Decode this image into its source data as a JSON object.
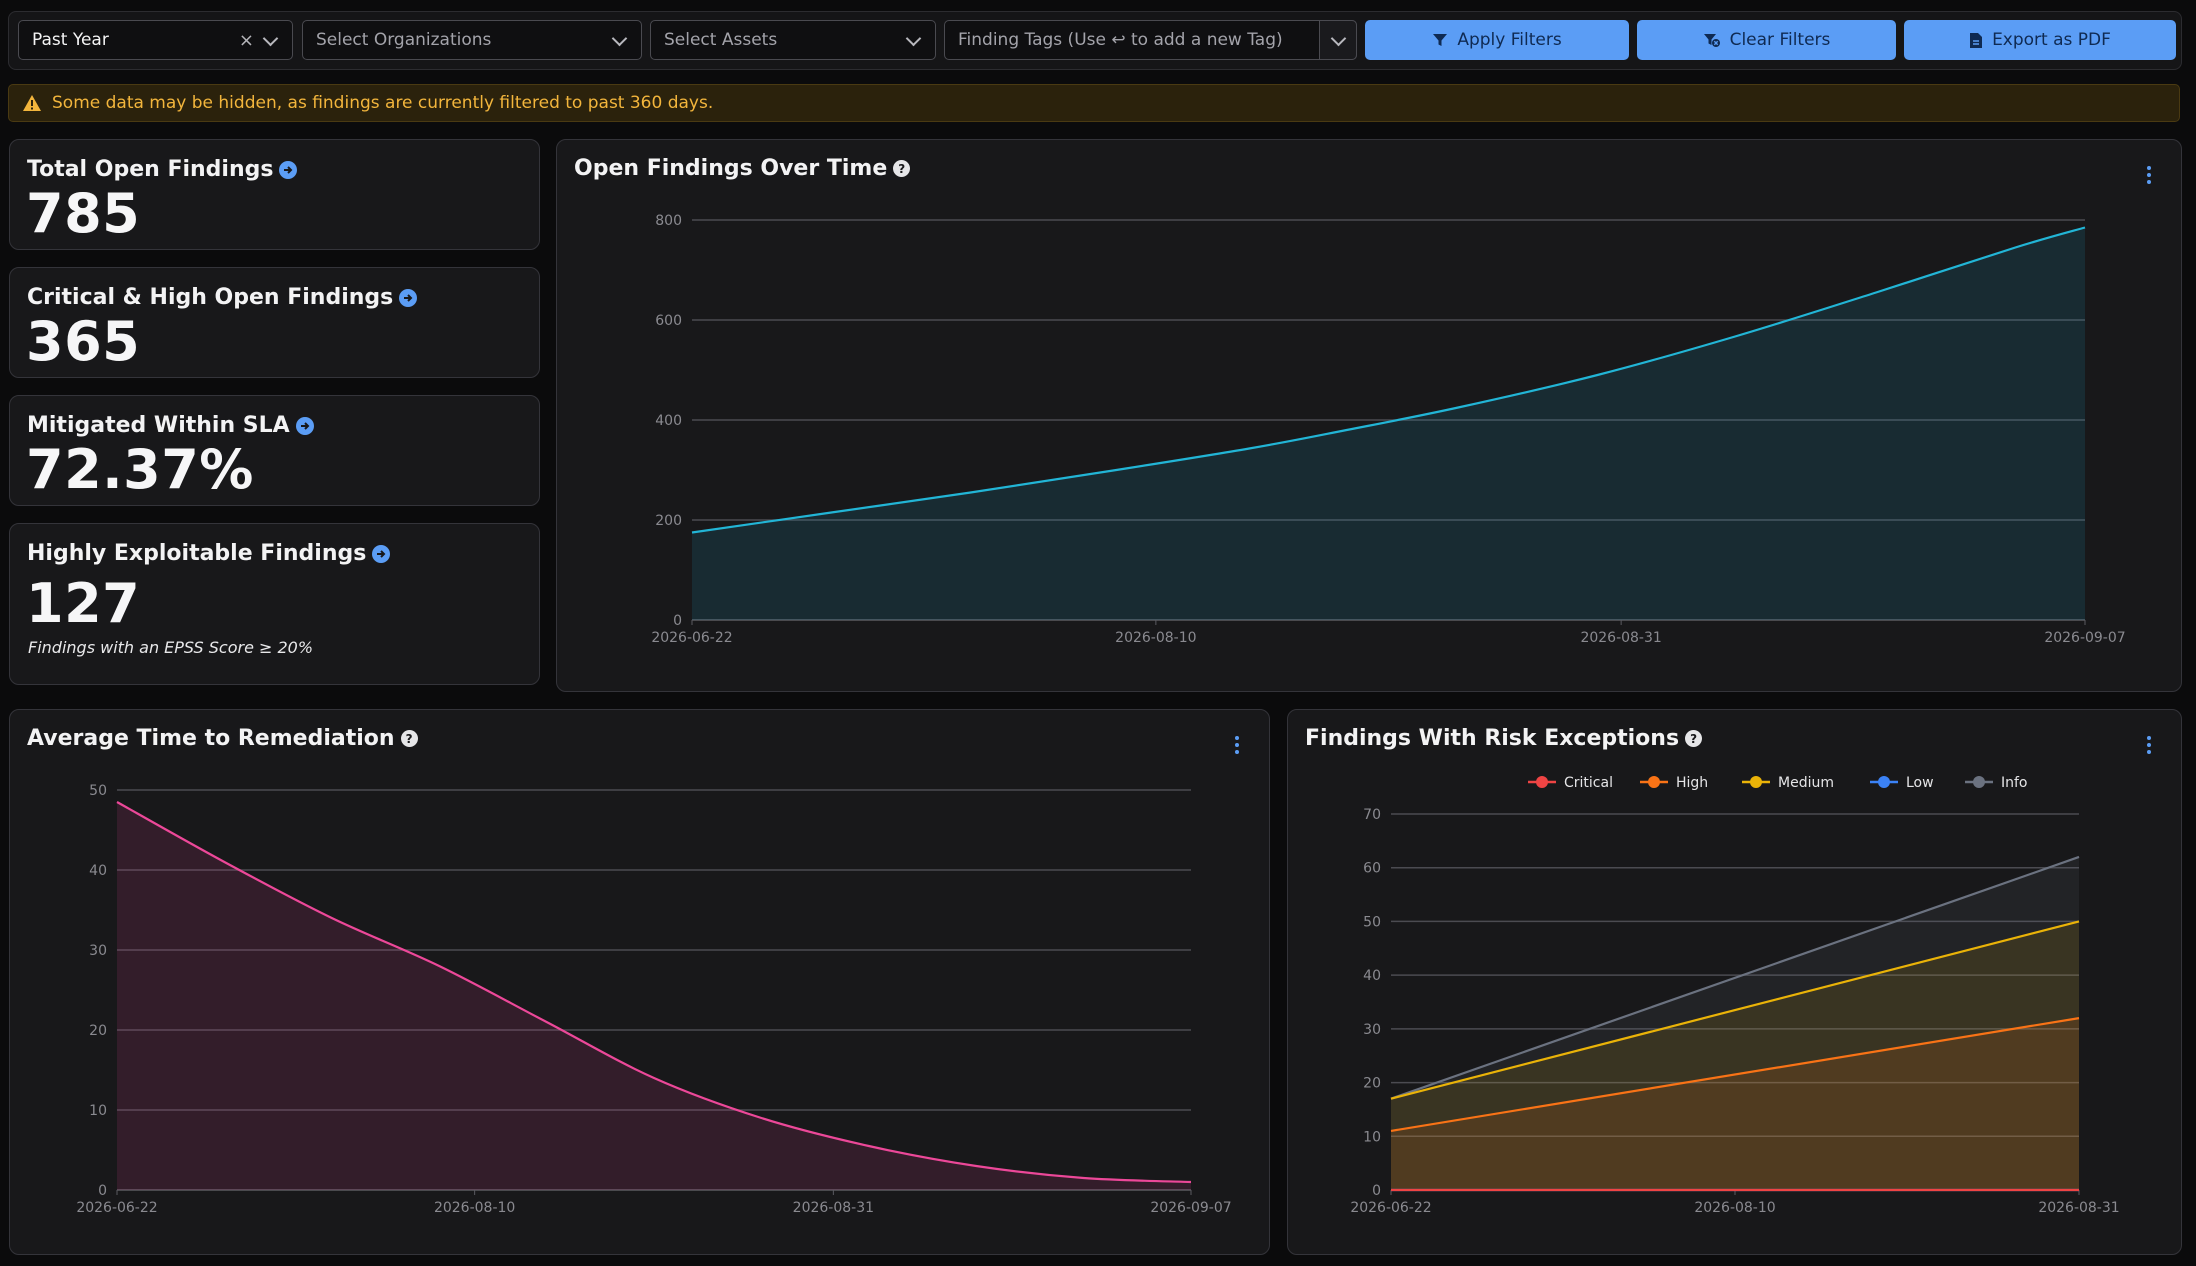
{
  "filters": {
    "date_range": "Past Year",
    "organizations_placeholder": "Select Organizations",
    "assets_placeholder": "Select Assets",
    "tags_placeholder": "Finding Tags (Use ↩ to add a new Tag)",
    "apply_label": "Apply Filters",
    "clear_label": "Clear Filters",
    "export_label": "Export as PDF"
  },
  "banner": {
    "text": "Some data may be hidden, as findings are currently filtered to past 360 days."
  },
  "stats": [
    {
      "title": "Total Open Findings",
      "value": "785"
    },
    {
      "title": "Critical & High Open Findings",
      "value": "365"
    },
    {
      "title": "Mitigated Within SLA",
      "value": "72.37%"
    },
    {
      "title": "Highly Exploitable Findings",
      "value": "127",
      "note": "Findings with an EPSS Score ≥ 20%"
    }
  ],
  "colors": {
    "accent": "#5b9df5",
    "warning": "#f2b53c",
    "critical": "#ef4444",
    "high": "#f97316",
    "medium": "#eab308",
    "low": "#3b82f6",
    "info": "#6b7280",
    "open_line": "#22b5d6",
    "remediation_line": "#ec4899"
  },
  "chart_data": [
    {
      "type": "area",
      "title": "Open Findings Over Time",
      "x_ticks": [
        "2026-06-22",
        "2026-08-10",
        "2026-08-31",
        "2026-09-07"
      ],
      "ylim": [
        0,
        800
      ],
      "y_ticks": [
        0,
        200,
        400,
        600,
        800
      ],
      "series": [
        {
          "x": [
            0,
            0.1,
            0.2,
            0.3,
            0.4,
            0.47,
            0.55,
            0.65,
            0.75,
            0.85,
            0.95,
            1.0
          ],
          "values": [
            175,
            215,
            255,
            298,
            343,
            380,
            425,
            490,
            568,
            655,
            745,
            785
          ]
        }
      ]
    },
    {
      "type": "area",
      "title": "Average Time to Remediation",
      "x_ticks": [
        "2026-06-22",
        "2026-08-10",
        "2026-08-31",
        "2026-09-07"
      ],
      "ylim": [
        0,
        50
      ],
      "y_ticks": [
        0,
        10,
        20,
        30,
        40,
        50
      ],
      "series": [
        {
          "x": [
            0,
            0.1,
            0.2,
            0.3,
            0.4,
            0.5,
            0.6,
            0.7,
            0.8,
            0.9,
            1.0
          ],
          "values": [
            48.5,
            41,
            34,
            28,
            21,
            14,
            9,
            5.5,
            3,
            1.5,
            1
          ]
        }
      ]
    },
    {
      "type": "area",
      "title": "Findings With Risk Exceptions",
      "x_ticks": [
        "2026-06-22",
        "2026-08-10",
        "2026-08-31"
      ],
      "ylim": [
        0,
        70
      ],
      "y_ticks": [
        0,
        10,
        20,
        30,
        40,
        50,
        60,
        70
      ],
      "legend": "top",
      "series": [
        {
          "name": "Critical",
          "values_start": 0,
          "values_end": 0
        },
        {
          "name": "High",
          "values_start": 11,
          "values_end": 32
        },
        {
          "name": "Medium",
          "values_start": 17,
          "values_end": 50
        },
        {
          "name": "Low",
          "values_start": 0,
          "values_end": 0
        },
        {
          "name": "Info",
          "values_start": 17,
          "values_end": 62
        }
      ]
    }
  ]
}
